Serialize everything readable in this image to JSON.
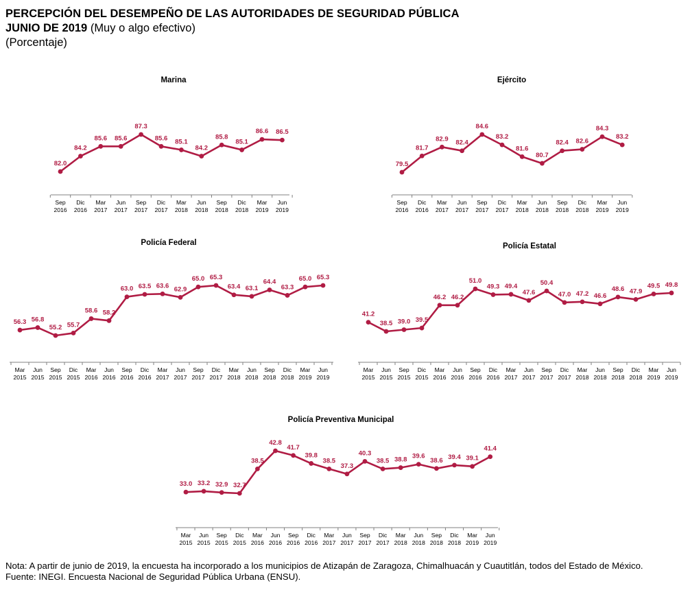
{
  "header": {
    "title": "PERCEPCIÓN DEL DESEMPEÑO DE LAS AUTORIDADES DE SEGURIDAD PÚBLICA",
    "subtitle_bold": "JUNIO DE 2019",
    "subtitle_rest": " (Muy o algo efectivo)",
    "unit": "(Porcentaje)"
  },
  "footer": {
    "note": "Nota: A partir de junio de 2019, la encuesta ha incorporado a los municipios de Atizapán de Zaragoza, Chimalhuacán y Cuautitlán, todos del Estado de México.",
    "source": "Fuente: INEGI. Encuesta Nacional de Seguridad Pública Urbana (ENSU)."
  },
  "colors": {
    "series": "#b01c44",
    "label": "#b01c44",
    "axis": "#808080",
    "text": "#000000"
  },
  "chart_data": [
    {
      "type": "line",
      "title": "Marina",
      "categories": [
        "Sep 2016",
        "Dic 2016",
        "Mar 2017",
        "Jun 2017",
        "Sep 2017",
        "Dic 2017",
        "Mar 2018",
        "Jun 2018",
        "Sep 2018",
        "Dic 2018",
        "Mar 2019",
        "Jun 2019"
      ],
      "values": [
        82.0,
        84.2,
        85.6,
        85.6,
        87.3,
        85.6,
        85.1,
        84.2,
        85.8,
        85.1,
        86.6,
        86.5
      ]
    },
    {
      "type": "line",
      "title": "Ejército",
      "categories": [
        "Sep 2016",
        "Dic 2016",
        "Mar 2017",
        "Jun 2017",
        "Sep 2017",
        "Dic 2017",
        "Mar 2018",
        "Jun 2018",
        "Sep 2018",
        "Dic 2018",
        "Mar 2019",
        "Jun 2019"
      ],
      "values": [
        79.5,
        81.7,
        82.9,
        82.4,
        84.6,
        83.2,
        81.6,
        80.7,
        82.4,
        82.6,
        84.3,
        83.2
      ]
    },
    {
      "type": "line",
      "title": "Policía Federal",
      "categories": [
        "Mar 2015",
        "Jun 2015",
        "Sep 2015",
        "Dic 2015",
        "Mar 2016",
        "Jun 2016",
        "Sep 2016",
        "Dic 2016",
        "Mar 2017",
        "Jun 2017",
        "Sep 2017",
        "Dic 2017",
        "Mar 2018",
        "Jun 2018",
        "Sep 2018",
        "Dic 2018",
        "Mar 2019",
        "Jun 2019"
      ],
      "values": [
        56.3,
        56.8,
        55.2,
        55.7,
        58.6,
        58.2,
        63.0,
        63.5,
        63.6,
        62.9,
        65.0,
        65.3,
        63.4,
        63.1,
        64.4,
        63.3,
        65.0,
        65.3
      ]
    },
    {
      "type": "line",
      "title": "Policía Estatal",
      "categories": [
        "Mar 2015",
        "Jun 2015",
        "Sep 2015",
        "Dic 2015",
        "Mar 2016",
        "Jun 2016",
        "Sep 2016",
        "Dic 2016",
        "Mar 2017",
        "Jun 2017",
        "Sep 2017",
        "Dic 2017",
        "Mar 2018",
        "Jun 2018",
        "Sep 2018",
        "Dic 2018",
        "Mar 2019",
        "Jun 2019"
      ],
      "values": [
        41.2,
        38.5,
        39.0,
        39.5,
        46.2,
        46.2,
        51.0,
        49.3,
        49.4,
        47.6,
        50.4,
        47.0,
        47.2,
        46.6,
        48.6,
        47.9,
        49.5,
        49.8
      ]
    },
    {
      "type": "line",
      "title": "Policía Preventiva Municipal",
      "categories": [
        "Mar 2015",
        "Jun 2015",
        "Sep 2015",
        "Dic 2015",
        "Mar 2016",
        "Jun 2016",
        "Sep 2016",
        "Dic 2016",
        "Mar 2017",
        "Jun 2017",
        "Sep 2017",
        "Dic 2017",
        "Mar 2018",
        "Jun 2018",
        "Sep 2018",
        "Dic 2018",
        "Mar 2019",
        "Jun 2019"
      ],
      "values": [
        33.0,
        33.2,
        32.9,
        32.7,
        38.5,
        42.8,
        41.7,
        39.8,
        38.5,
        37.3,
        40.3,
        38.5,
        38.8,
        39.6,
        38.6,
        39.4,
        39.1,
        41.4
      ]
    }
  ]
}
